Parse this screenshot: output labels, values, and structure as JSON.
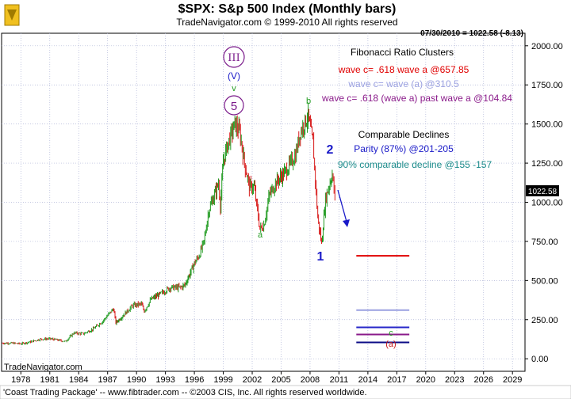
{
  "header": {
    "title": "$SPX:  S&p 500 Index  (Monthly bars)",
    "subtitle": "TradeNavigator.com © 1999-2010 All rights reserved",
    "last_price_note": "07/30/2010 = 1022.58 (-8.13)"
  },
  "footer": {
    "watermark": "TradeNavigator.com",
    "credit": "'Coast Trading Package' -- www.fibtrader.com -- ©2003 CIS, Inc. All rights reserved worldwide."
  },
  "price_tag": "1022.58",
  "colors": {
    "bar_up": "#1f9a1f",
    "bar_down": "#d81b1b",
    "grid": "#aeb4d6",
    "tag_bg": "#000000"
  },
  "annotations": {
    "fib_title": "Fibonacci Ratio Clusters",
    "fib_line1": "wave c= .618 wave a @657.85",
    "fib_line2": "wave c= wave (a) @310.5",
    "fib_line3": "wave c= .618 (wave a) past wave a @104.84",
    "comp_title": "Comparable Declines",
    "comp_line1": "Parity (87%) @201-205",
    "comp_line2": "90% comparable decline @155 -157",
    "wave_III": "III",
    "wave_V": "(V)",
    "wave_v": "v",
    "wave_5": "5",
    "wave_a": "a",
    "wave_b": "b",
    "wave_1": "1",
    "wave_2": "2",
    "wave_c": "c",
    "wave_a_paren": "(a)"
  },
  "chart_data": {
    "type": "line",
    "title": "$SPX:  S&p 500 Index  (Monthly bars)",
    "x_ticks": [
      "1978",
      "1981",
      "1984",
      "1987",
      "1990",
      "1993",
      "1996",
      "1999",
      "2002",
      "2005",
      "2008",
      "2011",
      "2014",
      "2017",
      "2020",
      "2023",
      "2026",
      "2029"
    ],
    "y_ticks": [
      0,
      250,
      500,
      750,
      1000,
      1250,
      1500,
      1750,
      2000
    ],
    "y_tick_labels": [
      "0.00",
      "250.00",
      "500.00",
      "750.00",
      "1000.00",
      "1250.00",
      "1500.00",
      "1750.00",
      "2000.00"
    ],
    "xlim": [
      1976,
      2030.3
    ],
    "ylim": [
      -80,
      2080
    ],
    "grid": true,
    "series": [
      {
        "x": [
          1976.0,
          1977.0,
          1978.0,
          1979.0,
          1980.0,
          1981.0,
          1982.0,
          1982.6,
          1983.5,
          1984.5,
          1985.5,
          1986.5,
          1987.6,
          1987.85,
          1988.5,
          1989.6,
          1990.5,
          1990.8,
          1991.5,
          1992.5,
          1993.5,
          1994.5,
          1995.0,
          1995.5,
          1996.0,
          1996.5,
          1997.0,
          1997.5,
          1998.5,
          1998.7,
          1999.0,
          1999.5,
          2000.2,
          2000.7,
          2001.2,
          2001.7,
          2002.2,
          2002.8,
          2003.2,
          2003.8,
          2004.5,
          2005.5,
          2006.5,
          2007.0,
          2007.8,
          2008.3,
          2008.8,
          2009.2,
          2009.6,
          2010.0,
          2010.3,
          2010.58
        ],
        "y": [
          100,
          100,
          96,
          108,
          125,
          128,
          118,
          110,
          165,
          160,
          190,
          240,
          320,
          230,
          270,
          340,
          350,
          305,
          380,
          415,
          455,
          455,
          470,
          540,
          610,
          660,
          750,
          950,
          1120,
          980,
          1260,
          1380,
          1500,
          1450,
          1250,
          1100,
          1100,
          830,
          850,
          1050,
          1130,
          1200,
          1300,
          1450,
          1550,
          1380,
          900,
          735,
          1020,
          1110,
          1180,
          1022.58
        ]
      }
    ],
    "reference_lines": [
      {
        "value": 657.85,
        "color": "#e00000"
      },
      {
        "value": 310.5,
        "color": "#9aa0e0"
      },
      {
        "value": 201,
        "color": "#2626c8"
      },
      {
        "value": 155,
        "color": "#8a1a8a"
      },
      {
        "value": 104.84,
        "color": "#0b0b86"
      }
    ]
  }
}
